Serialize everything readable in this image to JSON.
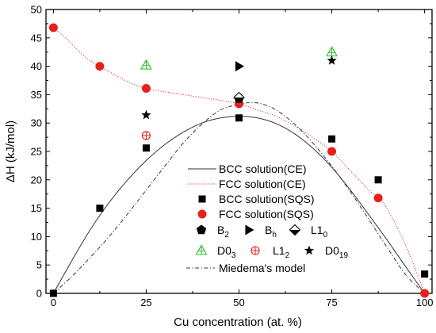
{
  "chart_data": {
    "type": "scatter",
    "xlabel": "Cu concentration (at. %)",
    "ylabel": "ΔH (kJ/mol)",
    "xlim": [
      -2,
      102
    ],
    "ylim": [
      0,
      50
    ],
    "xticks": [
      0,
      25,
      50,
      75,
      100
    ],
    "yticks": [
      0,
      5,
      10,
      15,
      20,
      25,
      30,
      35,
      40,
      45,
      50
    ],
    "grid": false,
    "legend_placement": "bottom-center",
    "series": [
      {
        "key": "bcc_ce",
        "name": "BCC solution(CE)",
        "style": "solid-line",
        "color": "#333333",
        "x": [
          0,
          5,
          10,
          15,
          20,
          25,
          30,
          35,
          40,
          45,
          50,
          55,
          60,
          65,
          70,
          75,
          80,
          85,
          90,
          95,
          100
        ],
        "y": [
          0,
          5.8,
          11.3,
          16.0,
          20.0,
          23.4,
          26.2,
          28.4,
          30.0,
          30.9,
          31.2,
          30.9,
          29.9,
          28.1,
          25.5,
          22.2,
          18.2,
          13.8,
          9.3,
          4.6,
          0
        ]
      },
      {
        "key": "fcc_ce",
        "name": "FCC solution(CE)",
        "style": "dotted-line",
        "color": "#e0302a",
        "x": [
          0,
          3,
          6,
          9,
          12.5,
          16,
          20,
          25,
          30,
          35,
          40,
          45,
          50,
          55,
          60,
          65,
          70,
          75,
          80,
          85,
          87.5,
          90,
          95,
          100
        ],
        "y": [
          46.8,
          45.2,
          43.2,
          41.4,
          40.0,
          38.7,
          37.3,
          36.1,
          35.5,
          35.0,
          34.5,
          34.0,
          33.4,
          32.3,
          31.2,
          29.5,
          27.4,
          25.0,
          21.6,
          18.2,
          16.8,
          14.8,
          8.3,
          0
        ]
      },
      {
        "key": "bcc_sqs",
        "name": "BCC solution(SQS)",
        "marker": "square",
        "color": "#000000",
        "x": [
          0,
          12.5,
          25,
          50,
          75,
          87.5,
          100
        ],
        "y": [
          0,
          15.0,
          25.6,
          30.9,
          27.2,
          20.0,
          3.4
        ]
      },
      {
        "key": "fcc_sqs",
        "name": "FCC solution(SQS)",
        "marker": "circle",
        "color": "#e8201c",
        "x": [
          0,
          12.5,
          25,
          50,
          75,
          87.5,
          100
        ],
        "y": [
          46.8,
          40.0,
          36.1,
          33.4,
          25.0,
          16.8,
          0
        ]
      },
      {
        "key": "b2",
        "name": "B",
        "name_sub": "2",
        "marker": "pentagon",
        "color": "#000000",
        "x": [
          50
        ],
        "y": [
          34.3
        ]
      },
      {
        "key": "bh",
        "name": "B",
        "name_sub": "h",
        "marker": "triangle-right",
        "color": "#000000",
        "x": [
          50
        ],
        "y": [
          40.0
        ]
      },
      {
        "key": "l10",
        "name": "L1",
        "name_sub": "0",
        "marker": "half-diamond",
        "color": "#000000",
        "x": [
          50
        ],
        "y": [
          34.5
        ]
      },
      {
        "key": "d03",
        "name": "D0",
        "name_sub": "3",
        "marker": "open-triangle-cross",
        "color": "#30c030",
        "x": [
          25,
          75
        ],
        "y": [
          40.2,
          42.5
        ]
      },
      {
        "key": "l12",
        "name": "L1",
        "name_sub": "2",
        "marker": "open-circle-cross",
        "color": "#e8201c",
        "x": [
          25
        ],
        "y": [
          27.8
        ]
      },
      {
        "key": "d019",
        "name": "D0",
        "name_sub": "19",
        "marker": "star",
        "color": "#000000",
        "x": [
          25,
          75
        ],
        "y": [
          31.4,
          41.0
        ]
      },
      {
        "key": "miedema",
        "name": "Miedema's model",
        "style": "dash-dot-line",
        "color": "#333333",
        "x": [
          0,
          5,
          10,
          15,
          20,
          25,
          30,
          35,
          40,
          45,
          50,
          53,
          56,
          60,
          65,
          70,
          75,
          80,
          85,
          90,
          95,
          100
        ],
        "y": [
          0,
          3.0,
          6.4,
          10.0,
          14.0,
          18.2,
          22.4,
          26.5,
          29.8,
          32.3,
          33.3,
          33.6,
          33.4,
          32.3,
          29.8,
          26.4,
          22.4,
          17.9,
          13.0,
          8.0,
          3.2,
          0
        ]
      }
    ]
  }
}
